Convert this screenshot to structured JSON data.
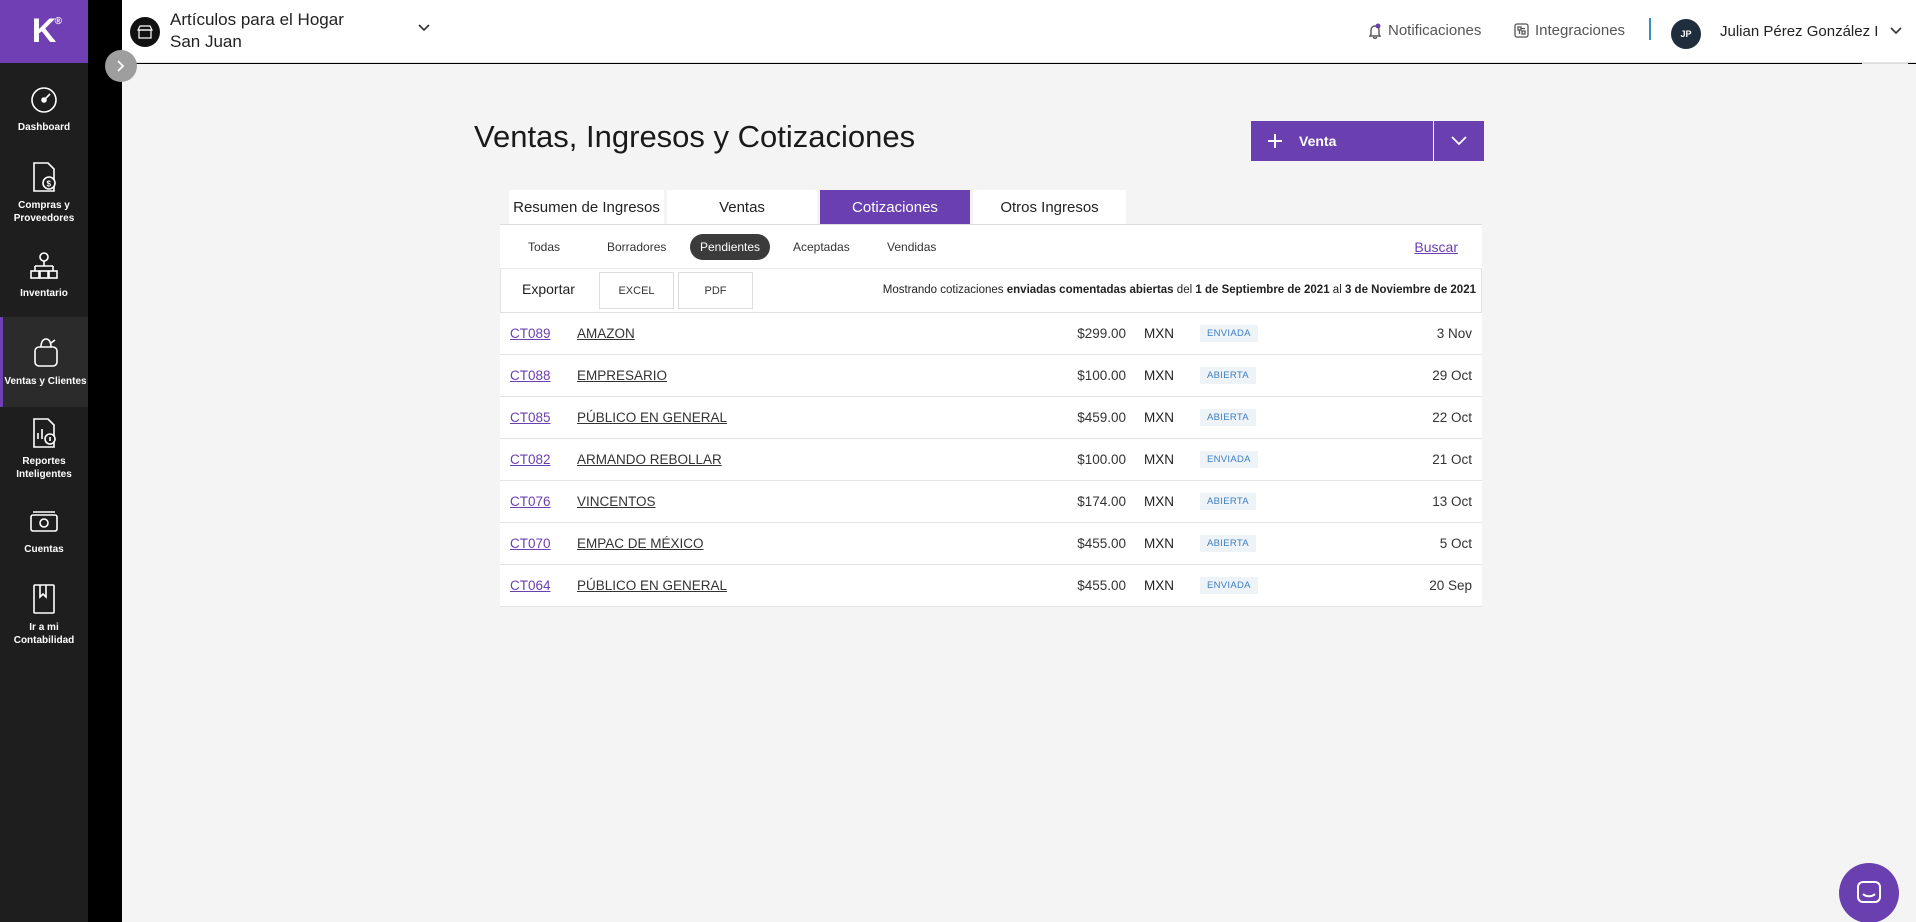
{
  "brand": {
    "logo_letter": "K",
    "logo_mark": "®",
    "accent": "#6a3fb0"
  },
  "sidebar": {
    "items": [
      {
        "label": "Dashboard",
        "icon": "speedometer-icon"
      },
      {
        "label": "Compras y Proveedores",
        "icon": "invoice-dollar-icon"
      },
      {
        "label": "Inventario",
        "icon": "hierarchy-icon"
      },
      {
        "label": "Ventas y Clientes",
        "icon": "shopping-bag-icon",
        "active": true
      },
      {
        "label": "Reportes Inteligentes",
        "icon": "report-chart-icon"
      },
      {
        "label": "Cuentas",
        "icon": "cash-icon"
      },
      {
        "label": "Ir a mi Contabilidad",
        "icon": "ledger-book-icon"
      }
    ]
  },
  "header": {
    "company_line1": "Artículos para el Hogar",
    "company_line2": "San Juan",
    "notifications": "Notificaciones",
    "integrations": "Integraciones",
    "user_initials": "JP",
    "user_name": "Julian Pérez González I"
  },
  "page": {
    "title": "Ventas, Ingresos y Cotizaciones",
    "new_button": "Venta"
  },
  "tabs": [
    {
      "label": "Resumen de Ingresos"
    },
    {
      "label": "Ventas"
    },
    {
      "label": "Cotizaciones",
      "active": true
    },
    {
      "label": "Otros Ingresos"
    }
  ],
  "filters": {
    "items": [
      "Todas",
      "Borradores",
      "Pendientes",
      "Aceptadas",
      "Vendidas"
    ],
    "active": "Pendientes",
    "search": "Buscar"
  },
  "export": {
    "label": "Exportar",
    "excel": "EXCEL",
    "pdf": "PDF",
    "showing_prefix": "Mostrando cotizaciones",
    "showing_status": "enviadas comentadas abiertas",
    "showing_del": "del",
    "date_from": "1 de Septiembre de 2021",
    "showing_al": "al",
    "date_to": "3 de Noviembre de 2021"
  },
  "quotes": [
    {
      "code": "CT089",
      "client": "AMAZON",
      "amount": "$299.00",
      "currency": "MXN",
      "status": "ENVIADA",
      "date": "3 Nov"
    },
    {
      "code": "CT088",
      "client": "EMPRESARIO",
      "amount": "$100.00",
      "currency": "MXN",
      "status": "ABIERTA",
      "date": "29 Oct"
    },
    {
      "code": "CT085",
      "client": "PÚBLICO EN GENERAL",
      "amount": "$459.00",
      "currency": "MXN",
      "status": "ABIERTA",
      "date": "22 Oct"
    },
    {
      "code": "CT082",
      "client": "ARMANDO REBOLLAR",
      "amount": "$100.00",
      "currency": "MXN",
      "status": "ENVIADA",
      "date": "21 Oct"
    },
    {
      "code": "CT076",
      "client": "VINCENTOS",
      "amount": "$174.00",
      "currency": "MXN",
      "status": "ABIERTA",
      "date": "13 Oct"
    },
    {
      "code": "CT070",
      "client": "EMPAC DE MÉXICO",
      "amount": "$455.00",
      "currency": "MXN",
      "status": "ABIERTA",
      "date": "5 Oct"
    },
    {
      "code": "CT064",
      "client": "PÚBLICO EN GENERAL",
      "amount": "$455.00",
      "currency": "MXN",
      "status": "ENVIADA",
      "date": "20 Sep"
    }
  ]
}
